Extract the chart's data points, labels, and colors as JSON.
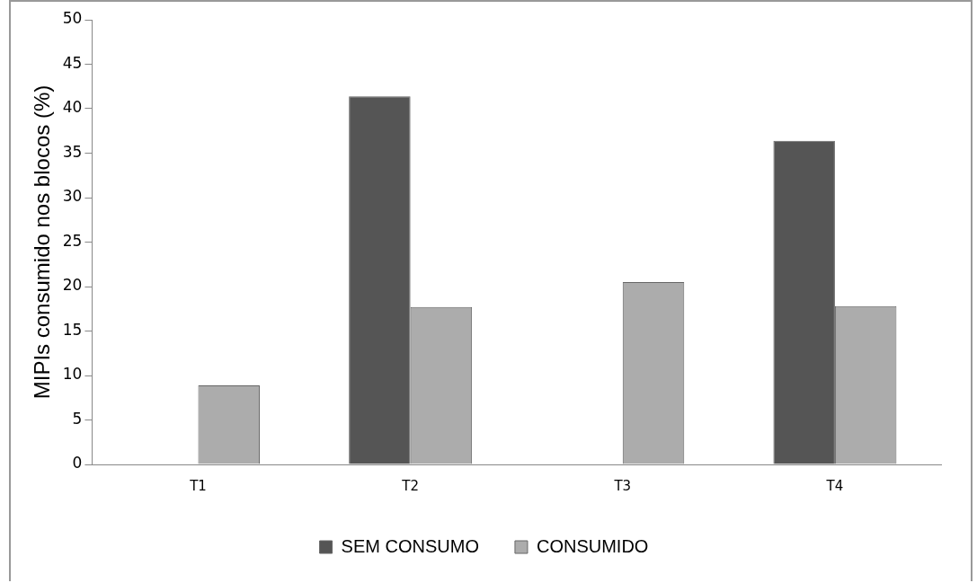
{
  "chart_data": {
    "type": "bar",
    "ylabel": "MIPIs consumido nos blocos (%)",
    "categories": [
      "T1",
      "T2",
      "T3",
      "T4"
    ],
    "series": [
      {
        "name": "SEM CONSUMO",
        "color": "#555555",
        "values": [
          0,
          41.4,
          0,
          36.4
        ]
      },
      {
        "name": "CONSUMIDO",
        "color": "#acacac",
        "values": [
          8.9,
          17.7,
          20.5,
          17.8
        ]
      }
    ],
    "ylim": [
      0,
      50
    ],
    "yticks": [
      0,
      5,
      10,
      15,
      20,
      25,
      30,
      35,
      40,
      45,
      50
    ],
    "grid": false,
    "legend": "bottom"
  }
}
